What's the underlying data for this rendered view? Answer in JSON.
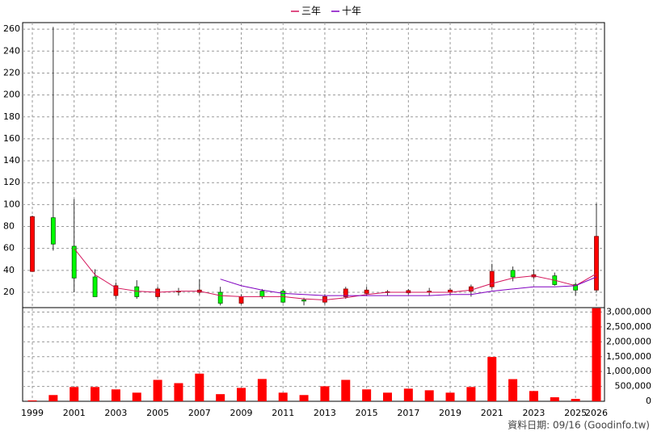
{
  "chart_data": {
    "type": "candlestick",
    "categories": [
      "1999",
      null,
      "2001",
      null,
      "2003",
      null,
      "2005",
      null,
      "2007",
      null,
      "2009",
      null,
      "2011",
      null,
      "2013",
      null,
      "2015",
      null,
      "2017",
      null,
      "2019",
      null,
      "2021",
      null,
      "2023",
      null,
      "2025",
      "2026"
    ],
    "open": [
      39,
      88,
      62,
      34,
      17,
      25,
      16,
      21,
      20,
      20,
      10,
      21,
      21,
      13,
      11,
      16,
      19,
      20,
      19.5,
      20,
      20,
      21,
      25,
      40,
      34,
      35,
      27,
      22
    ],
    "high": [
      90,
      262,
      105,
      41,
      29,
      31,
      25,
      24,
      32,
      25,
      18,
      23,
      23,
      15,
      18,
      25,
      25,
      22,
      23,
      24,
      24,
      27,
      46,
      43.5,
      41,
      38,
      29,
      101
    ],
    "low": [
      39,
      58,
      20,
      16,
      14,
      14,
      14,
      17,
      18,
      8,
      9,
      14,
      10,
      8,
      9,
      14,
      17,
      17,
      18,
      17,
      18,
      16,
      23,
      30,
      32,
      26,
      17,
      20
    ],
    "close": [
      89,
      64,
      33,
      16,
      26,
      16,
      23,
      21,
      22,
      10,
      16,
      16,
      11,
      12,
      16,
      23,
      22,
      20.5,
      21.5,
      21,
      22,
      25,
      39,
      34,
      36,
      27,
      22,
      71
    ],
    "up_color": "#ff0000",
    "down_color": "#00ff00",
    "series": [
      {
        "name": "三年",
        "color": "#d4145a",
        "values": [
          null,
          null,
          60,
          36,
          24,
          21,
          20,
          21,
          21,
          17,
          16,
          16,
          16,
          14,
          13,
          15,
          18,
          20,
          20,
          20,
          20,
          22,
          28,
          33,
          35,
          31,
          26,
          37
        ]
      },
      {
        "name": "十年",
        "color": "#8000c0",
        "values": [
          null,
          null,
          null,
          null,
          null,
          null,
          null,
          null,
          null,
          32,
          26,
          22,
          19,
          18,
          17,
          17,
          17,
          17,
          17,
          17,
          18,
          18,
          21,
          23,
          25,
          25,
          26,
          34
        ]
      }
    ],
    "volume": {
      "color": "#ff0000",
      "values": [
        30000,
        210000,
        480000,
        480000,
        400000,
        290000,
        720000,
        610000,
        930000,
        240000,
        450000,
        750000,
        290000,
        210000,
        505000,
        720000,
        400000,
        290000,
        425000,
        370000,
        290000,
        480000,
        1490000,
        745000,
        345000,
        135000,
        80000,
        3130000
      ]
    },
    "ylim": [
      6,
      266
    ],
    "yticks": [
      20,
      40,
      60,
      80,
      100,
      120,
      140,
      160,
      180,
      200,
      220,
      240,
      260
    ],
    "y2lim": [
      0,
      3150000
    ],
    "y2ticks": [
      0,
      {
        "value": 500000,
        "label": "500,000"
      },
      {
        "value": 1000000,
        "label": "1,000,000"
      },
      {
        "value": 1500000,
        "label": "1,500,000"
      },
      {
        "value": 2000000,
        "label": "2,000,000"
      },
      {
        "value": 2500000,
        "label": "2,500,000"
      },
      {
        "value": 3000000,
        "label": "3,000,000"
      }
    ],
    "grid": true,
    "legend": "top",
    "source": "資料日期: 09/16 (Goodinfo.tw)"
  }
}
